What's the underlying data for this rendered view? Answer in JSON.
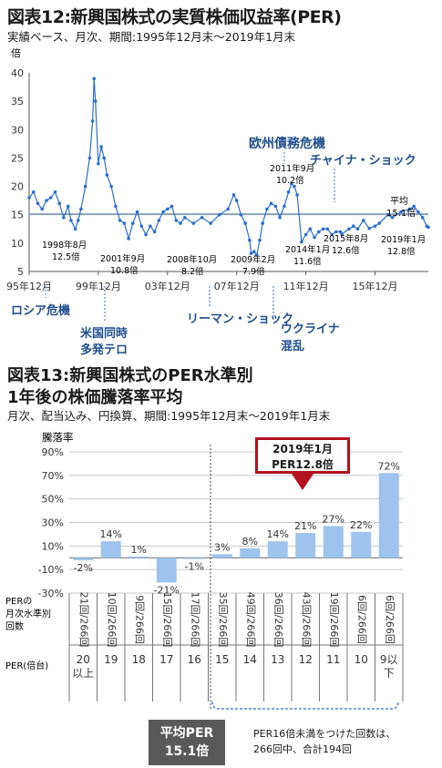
{
  "fig12": {
    "title": "図表12:新興国株式の実質株価収益率(PER)",
    "subtitle": "実績ベース、月次、期間:1995年12月末〜2019年1月末",
    "unit": "倍",
    "annotations": {
      "europe": "欧州債務危機",
      "china": "チャイナ・ショック",
      "russia": "ロシア危機",
      "us_terror": [
        "米国同時",
        "多発テロ"
      ],
      "lehman": "リーマン・ショック",
      "ukraine": [
        "ウクライナ",
        "混乱"
      ],
      "avg_label": [
        "平均",
        "15.1倍"
      ],
      "points": [
        [
          "1998年8月",
          "12.5倍"
        ],
        [
          "2001年9月",
          "10.8倍"
        ],
        [
          "2008年10月",
          "8.2倍"
        ],
        [
          "2009年2月",
          "7.9倍"
        ],
        [
          "2011年9月",
          "10.2倍"
        ],
        [
          "2014年1月",
          "11.6倍"
        ],
        [
          "2015年8月",
          "12.6倍"
        ],
        [
          "2019年1月",
          "12.8倍"
        ]
      ]
    }
  },
  "fig13": {
    "title_line1": "図表13:新興国株式のPER水準別",
    "title_line2": "1年後の株価騰落率平均",
    "subtitle": "月次、配当込み、円換算、期間:1995年12月末〜2019年1月末",
    "ylabel": "騰落率",
    "callout": [
      "2019年1月",
      "PER12.8倍"
    ],
    "count_row_label": [
      "PERの",
      "月次水準別",
      "回数"
    ],
    "per_row_label": "PER(倍台)",
    "counts": [
      "21回/266回",
      "10回/266回",
      "9回/266回",
      "15回/266回",
      "17回/266回",
      "35回/266回",
      "49回/266回",
      "36回/266回",
      "43回/266回",
      "19回/266回",
      "6回/266回",
      "6回/266回"
    ],
    "per_levels": [
      [
        "20",
        "以上"
      ],
      [
        "19"
      ],
      [
        "18"
      ],
      [
        "17"
      ],
      [
        "16"
      ],
      [
        "15"
      ],
      [
        "14"
      ],
      [
        "13"
      ],
      [
        "12"
      ],
      [
        "11"
      ],
      [
        "10"
      ],
      [
        "9以",
        "下"
      ]
    ],
    "avg_box": [
      "平均PER",
      "15.1倍"
    ],
    "note": [
      "PER16倍未満をつけた回数は、",
      "266回中、合計194回"
    ]
  },
  "chart_data": [
    {
      "type": "line",
      "title": "図表12:新興国株式の実質株価収益率(PER)",
      "ylabel": "倍",
      "x_start": "1995-12",
      "x_end": "2019-01",
      "ylim": [
        5,
        40
      ],
      "yticks": [
        5,
        10,
        15,
        20,
        25,
        30,
        35,
        40
      ],
      "xtick_labels": [
        "95年12月",
        "99年12月",
        "03年12月",
        "07年12月",
        "11年12月",
        "15年12月"
      ],
      "average": 15.1,
      "marked_points": [
        {
          "x": "1998-08",
          "y": 12.5
        },
        {
          "x": "2001-09",
          "y": 10.8
        },
        {
          "x": "2008-10",
          "y": 8.2
        },
        {
          "x": "2009-02",
          "y": 7.9
        },
        {
          "x": "2011-09",
          "y": 10.2
        },
        {
          "x": "2014-01",
          "y": 11.6
        },
        {
          "x": "2015-08",
          "y": 12.6
        },
        {
          "x": "2019-01",
          "y": 12.8
        }
      ],
      "series": [
        {
          "points": [
            [
              "1995-12",
              18.0
            ],
            [
              "1996-03",
              19.0
            ],
            [
              "1996-06",
              17.0
            ],
            [
              "1996-09",
              16.0
            ],
            [
              "1996-12",
              17.5
            ],
            [
              "1997-03",
              18.0
            ],
            [
              "1997-06",
              19.0
            ],
            [
              "1997-09",
              17.0
            ],
            [
              "1997-12",
              14.5
            ],
            [
              "1998-03",
              16.5
            ],
            [
              "1998-05",
              14.0
            ],
            [
              "1998-08",
              12.5
            ],
            [
              "1998-10",
              14.0
            ],
            [
              "1998-12",
              16.0
            ],
            [
              "1999-03",
              20.0
            ],
            [
              "1999-06",
              25.0
            ],
            [
              "1999-08",
              31.5
            ],
            [
              "1999-09",
              39.0
            ],
            [
              "1999-10",
              35.0
            ],
            [
              "1999-12",
              24.0
            ],
            [
              "2000-02",
              27.0
            ],
            [
              "2000-04",
              25.0
            ],
            [
              "2000-06",
              22.0
            ],
            [
              "2000-09",
              20.0
            ],
            [
              "2000-12",
              16.5
            ],
            [
              "2001-03",
              14.0
            ],
            [
              "2001-06",
              13.5
            ],
            [
              "2001-09",
              10.8
            ],
            [
              "2001-12",
              13.5
            ],
            [
              "2002-03",
              15.5
            ],
            [
              "2002-06",
              13.0
            ],
            [
              "2002-09",
              11.5
            ],
            [
              "2002-12",
              13.0
            ],
            [
              "2003-03",
              12.0
            ],
            [
              "2003-06",
              14.0
            ],
            [
              "2003-09",
              15.5
            ],
            [
              "2003-12",
              16.0
            ],
            [
              "2004-03",
              16.5
            ],
            [
              "2004-06",
              14.0
            ],
            [
              "2004-09",
              13.5
            ],
            [
              "2004-12",
              14.5
            ],
            [
              "2005-06",
              13.5
            ],
            [
              "2005-12",
              14.5
            ],
            [
              "2006-06",
              13.5
            ],
            [
              "2006-12",
              15.0
            ],
            [
              "2007-06",
              16.0
            ],
            [
              "2007-10",
              18.5
            ],
            [
              "2007-12",
              17.5
            ],
            [
              "2008-03",
              15.0
            ],
            [
              "2008-06",
              13.5
            ],
            [
              "2008-09",
              10.5
            ],
            [
              "2008-10",
              8.2
            ],
            [
              "2008-12",
              8.5
            ],
            [
              "2009-02",
              7.9
            ],
            [
              "2009-04",
              10.5
            ],
            [
              "2009-06",
              13.5
            ],
            [
              "2009-09",
              16.0
            ],
            [
              "2009-12",
              17.0
            ],
            [
              "2010-03",
              16.5
            ],
            [
              "2010-06",
              14.5
            ],
            [
              "2010-09",
              16.5
            ],
            [
              "2010-12",
              19.0
            ],
            [
              "2011-02",
              20.5
            ],
            [
              "2011-04",
              20.0
            ],
            [
              "2011-06",
              18.5
            ],
            [
              "2011-09",
              10.2
            ],
            [
              "2011-12",
              11.5
            ],
            [
              "2012-03",
              12.5
            ],
            [
              "2012-06",
              11.0
            ],
            [
              "2012-09",
              12.0
            ],
            [
              "2012-12",
              12.5
            ],
            [
              "2013-03",
              12.5
            ],
            [
              "2013-06",
              11.5
            ],
            [
              "2013-09",
              12.0
            ],
            [
              "2013-12",
              12.0
            ],
            [
              "2014-01",
              11.6
            ],
            [
              "2014-06",
              12.5
            ],
            [
              "2014-09",
              13.0
            ],
            [
              "2014-12",
              12.5
            ],
            [
              "2015-04",
              14.0
            ],
            [
              "2015-08",
              12.6
            ],
            [
              "2015-12",
              13.0
            ],
            [
              "2016-03",
              13.5
            ],
            [
              "2016-09",
              15.0
            ],
            [
              "2016-12",
              14.5
            ],
            [
              "2017-06",
              15.5
            ],
            [
              "2017-12",
              16.0
            ],
            [
              "2018-03",
              16.5
            ],
            [
              "2018-06",
              15.5
            ],
            [
              "2018-09",
              14.5
            ],
            [
              "2018-12",
              13.0
            ],
            [
              "2019-01",
              12.8
            ]
          ]
        }
      ]
    },
    {
      "type": "bar",
      "title": "図表13:新興国株式のPER水準別 1年後の株価騰落率平均",
      "ylabel": "騰落率",
      "ylim": [
        -30,
        90
      ],
      "yticks": [
        -30,
        -10,
        10,
        30,
        50,
        70,
        90
      ],
      "categories": [
        "20以上",
        "19",
        "18",
        "17",
        "16",
        "15",
        "14",
        "13",
        "12",
        "11",
        "10",
        "9以下"
      ],
      "values": [
        -2,
        14,
        1,
        -21,
        -1,
        3,
        8,
        14,
        21,
        27,
        22,
        72
      ],
      "value_labels": [
        "-2%",
        "14%",
        "1%",
        "-21%",
        "-1%",
        "3%",
        "8%",
        "14%",
        "21%",
        "27%",
        "22%",
        "72%"
      ],
      "bar_color": "#9dc3ee"
    }
  ]
}
